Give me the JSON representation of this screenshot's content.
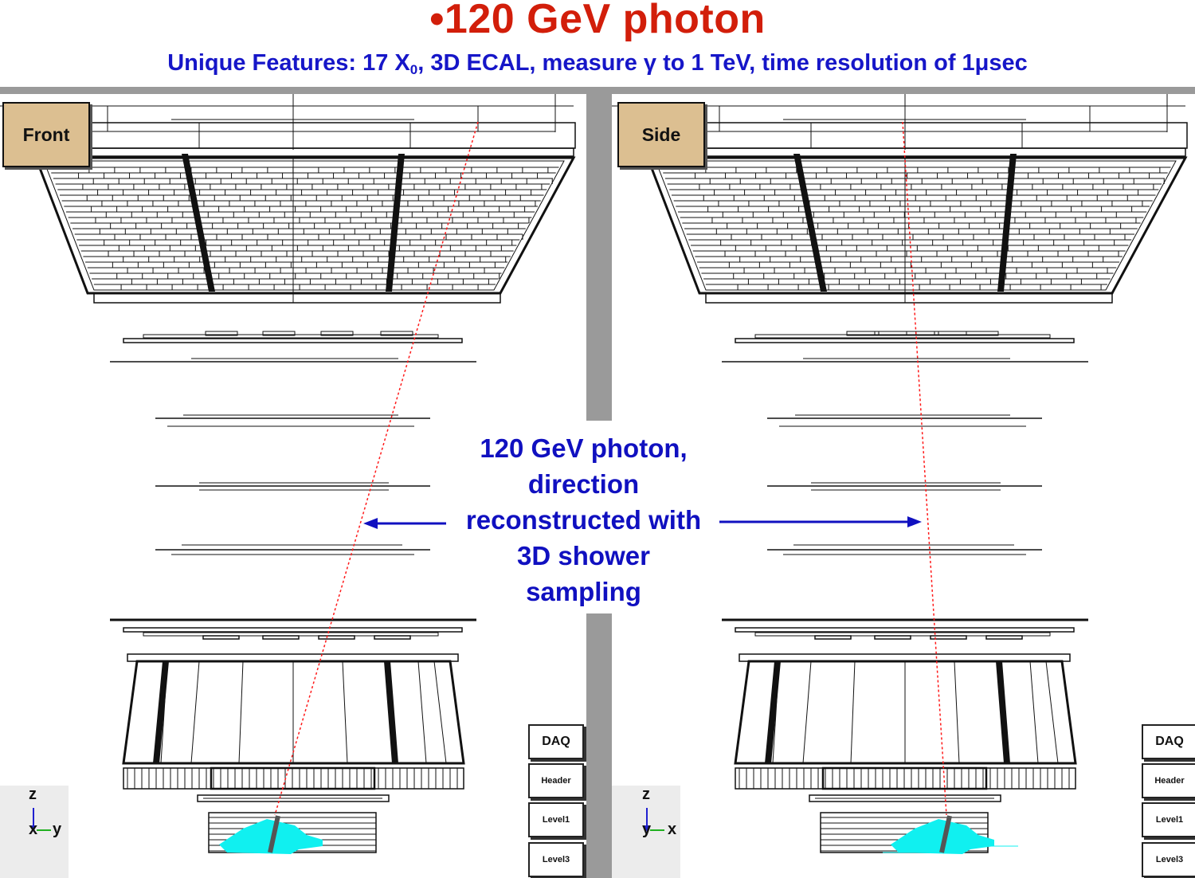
{
  "title": "•120 GeV photon",
  "subtitle": {
    "pre": "Unique Features: 17 X",
    "sub": "0",
    "post": ", 3D ECAL, measure γ to 1 TeV, time resolution of 1μsec"
  },
  "views": {
    "front": {
      "label": "Front",
      "axis_vertical": "z",
      "axis_depth": "x",
      "axis_horizontal": "y"
    },
    "side": {
      "label": "Side",
      "axis_vertical": "z",
      "axis_depth": "y",
      "axis_horizontal": "x"
    }
  },
  "trigger_buttons": [
    "DAQ",
    "Header",
    "Level1",
    "Level3"
  ],
  "callout": {
    "lines": [
      "120 GeV photon,",
      "direction",
      "reconstructed with",
      "3D shower",
      "sampling"
    ]
  },
  "colors": {
    "title": "#d21e0a",
    "subtitle": "#1616c8",
    "callout": "#1010c0",
    "track": "#ff1a1a",
    "shower": "#10f0f0",
    "view_tab": "#dcbf91",
    "frame": "#9a9a9a"
  }
}
